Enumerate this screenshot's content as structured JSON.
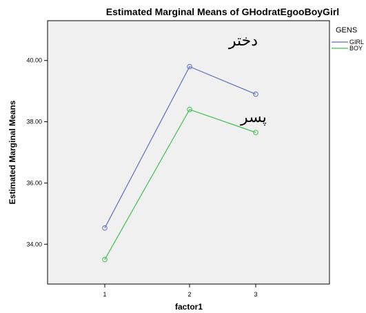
{
  "chart_data": {
    "type": "line",
    "title": "Estimated Marginal Means of GHodratEgooBoyGirl",
    "xlabel": "factor1",
    "ylabel": "Estimated Marginal Means",
    "categories": [
      "1",
      "2",
      "3"
    ],
    "ylim": [
      32.7,
      41.3
    ],
    "yticks": [
      "34.00",
      "36.00",
      "38.00",
      "40.00"
    ],
    "grid": false,
    "legend": {
      "title": "GENS",
      "placement": "top-right"
    },
    "series": [
      {
        "name": "GIRL",
        "color": "#5b6fbf",
        "values": [
          34.53,
          39.8,
          38.9
        ]
      },
      {
        "name": "BOY",
        "color": "#40c050",
        "values": [
          33.5,
          38.4,
          37.65
        ]
      }
    ],
    "annotations": [
      {
        "text": "دختر",
        "series": "GIRL"
      },
      {
        "text": "پسر",
        "series": "BOY"
      }
    ]
  },
  "colors": {
    "plot_background": "#f0f0f0",
    "girl": "#5b6fbf",
    "boy": "#40c050"
  }
}
